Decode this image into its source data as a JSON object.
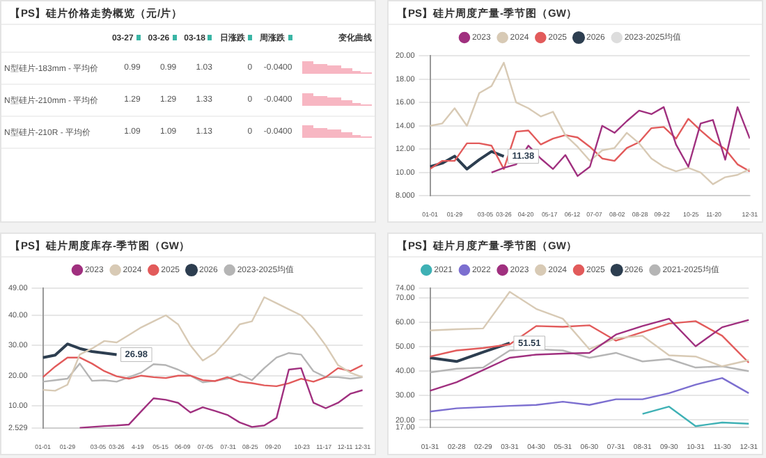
{
  "chart_data": [
    {
      "type": "other",
      "title": "【PS】硅片价格走势概览（元/片）",
      "annotations": [
        "03-27",
        "03-26",
        "03-18",
        "日涨跌",
        "周涨跌",
        "变化曲线",
        "N型硅片-183mm - 平均价",
        "0.99",
        "0.99",
        "1.03",
        "0",
        "-0.0400",
        "N型硅片-210mm - 平均价",
        "1.29",
        "1.29",
        "1.33",
        "0",
        "-0.0400",
        "N型硅片-210R - 平均价",
        "1.09",
        "1.09",
        "1.13",
        "0",
        "-0.0400"
      ]
    },
    {
      "type": "line",
      "title": "【PS】硅片周度产量-季节图（GW）",
      "legend": "top",
      "grid": "y",
      "x": [
        "--01-01",
        "--01-15",
        "--01-29",
        "--02-12",
        "--02-26",
        "--03-12",
        "--03-26",
        "--04-09",
        "--04-23",
        "--05-07",
        "--05-21",
        "--06-04",
        "--06-18",
        "--07-02",
        "--07-16",
        "--07-30",
        "--08-13",
        "--08-27",
        "--09-10",
        "--09-24",
        "--10-08",
        "--10-22",
        "--11-05",
        "--11-19",
        "--12-03",
        "--12-17",
        "--12-31"
      ],
      "xlim": [
        "--01-01",
        "--12-31"
      ],
      "xticks": [
        {
          "value": "--01-01",
          "label": "01-01"
        },
        {
          "value": "--01-29",
          "label": "01-29"
        },
        {
          "value": "--03-05",
          "label": "03-05"
        },
        {
          "value": "--03-26",
          "label": "03-26"
        },
        {
          "value": "--04-20",
          "label": "04-20"
        },
        {
          "value": "--05-17",
          "label": "05-17"
        },
        {
          "value": "--06-12",
          "label": "06-12"
        },
        {
          "value": "--07-07",
          "label": "07-07"
        },
        {
          "value": "--08-02",
          "label": "08-02"
        },
        {
          "value": "--08-28",
          "label": "08-28"
        },
        {
          "value": "--09-22",
          "label": "09-22"
        },
        {
          "value": "--10-25",
          "label": "10-25"
        },
        {
          "value": "--11-20",
          "label": "11-20"
        },
        {
          "value": "--12-31",
          "label": "12-31"
        }
      ],
      "ylim": [
        8,
        20
      ],
      "yticks": [
        {
          "value": 8,
          "label": "8.000"
        },
        {
          "value": 10,
          "label": "10.00"
        },
        {
          "value": 12,
          "label": "12.00"
        },
        {
          "value": 14,
          "label": "14.00"
        },
        {
          "value": 16,
          "label": "16.00"
        },
        {
          "value": 18,
          "label": "18.00"
        },
        {
          "value": 20,
          "label": "20.00"
        }
      ],
      "annotations": [
        {
          "text": "11.38",
          "x": "--03-26",
          "y": 11.38
        }
      ],
      "series": [
        {
          "name": "2023",
          "color": "#a0307f",
          "values": [
            null,
            null,
            null,
            null,
            null,
            10.0,
            10.4,
            10.7,
            12.3,
            11.2,
            10.3,
            11.5,
            9.7,
            10.5,
            14.0,
            13.4,
            14.4,
            15.3,
            15.0,
            15.6,
            12.4,
            10.5,
            14.2,
            14.5,
            11.1,
            15.6,
            12.9
          ]
        },
        {
          "name": "2024",
          "color": "#d8cab5",
          "values": [
            14.0,
            14.2,
            15.5,
            14.0,
            16.8,
            17.4,
            19.4,
            16.0,
            15.5,
            14.8,
            15.2,
            13.2,
            12.2,
            11.0,
            11.9,
            12.1,
            13.4,
            12.5,
            11.2,
            10.5,
            10.1,
            10.4,
            10.0,
            9.0,
            9.6,
            9.8,
            10.3
          ]
        },
        {
          "name": "2025",
          "color": "#e25b5b",
          "values": [
            10.3,
            11.0,
            11.0,
            12.5,
            12.5,
            12.3,
            10.3,
            13.5,
            13.6,
            12.4,
            12.9,
            13.2,
            13.0,
            12.2,
            11.2,
            11.0,
            12.1,
            12.6,
            13.8,
            13.9,
            12.9,
            14.6,
            13.6,
            12.7,
            12.0,
            10.7,
            10.1
          ]
        },
        {
          "name": "2026",
          "color": "#2d3e50",
          "values": [
            10.5,
            10.8,
            11.4,
            10.3,
            11.1,
            11.8,
            11.38,
            null,
            null,
            null,
            null,
            null,
            null,
            null,
            null,
            null,
            null,
            null,
            null,
            null,
            null,
            null,
            null,
            null,
            null,
            null,
            null
          ]
        },
        {
          "name": "2023-2025均值",
          "color": "#dddddd",
          "values": [
            null,
            null,
            null,
            null,
            null,
            null,
            null,
            null,
            null,
            null,
            null,
            null,
            null,
            null,
            null,
            null,
            null,
            null,
            null,
            null,
            null,
            null,
            null,
            null,
            null,
            null,
            null
          ]
        }
      ]
    },
    {
      "type": "line",
      "title": "【PS】硅片周度库存-季节图（GW）",
      "legend": "top",
      "grid": "y",
      "x": [
        "--01-01",
        "--01-15",
        "--01-29",
        "--02-12",
        "--02-26",
        "--03-12",
        "--03-26",
        "--04-09",
        "--04-23",
        "--05-07",
        "--05-21",
        "--06-04",
        "--06-18",
        "--07-02",
        "--07-16",
        "--07-30",
        "--08-13",
        "--08-27",
        "--09-10",
        "--09-24",
        "--10-08",
        "--10-22",
        "--11-05",
        "--11-19",
        "--12-03",
        "--12-17",
        "--12-31"
      ],
      "xlim": [
        "--01-01",
        "--12-31"
      ],
      "xticks": [
        {
          "value": "--01-01",
          "label": "01-01"
        },
        {
          "value": "--01-29",
          "label": "01-29"
        },
        {
          "value": "--03-05",
          "label": "03-05"
        },
        {
          "value": "--03-26",
          "label": "03-26"
        },
        {
          "value": "--04-19",
          "label": "4-19"
        },
        {
          "value": "--05-15",
          "label": "05-15"
        },
        {
          "value": "--06-09",
          "label": "06-09"
        },
        {
          "value": "--07-05",
          "label": "07-05"
        },
        {
          "value": "--07-31",
          "label": "07-31"
        },
        {
          "value": "--08-25",
          "label": "08-25"
        },
        {
          "value": "--09-20",
          "label": "09-20"
        },
        {
          "value": "--10-23",
          "label": "10-23"
        },
        {
          "value": "--11-17",
          "label": "11-17"
        },
        {
          "value": "--12-11",
          "label": "12-11"
        },
        {
          "value": "--12-31",
          "label": "12-31"
        }
      ],
      "ylim": [
        2.529,
        49
      ],
      "yticks": [
        {
          "value": 2.529,
          "label": "2.529"
        },
        {
          "value": 10,
          "label": "10.00"
        },
        {
          "value": 20,
          "label": "20.00"
        },
        {
          "value": 30,
          "label": "30.00"
        },
        {
          "value": 40,
          "label": "40.00"
        },
        {
          "value": 49,
          "label": "49.00"
        }
      ],
      "annotations": [
        {
          "text": "26.98",
          "x": "--03-26",
          "y": 26.98
        }
      ],
      "series": [
        {
          "name": "2023",
          "color": "#a0307f",
          "values": [
            null,
            null,
            null,
            2.7,
            3.0,
            3.3,
            3.5,
            3.8,
            8.2,
            12.5,
            12,
            11,
            7.8,
            9.5,
            8.3,
            7,
            4.5,
            3.0,
            3.5,
            6,
            22,
            22.5,
            11,
            9.2,
            11,
            14,
            15.2
          ]
        },
        {
          "name": "2024",
          "color": "#d8cab5",
          "values": [
            15.3,
            15.0,
            17,
            27,
            29,
            31.5,
            31,
            33.5,
            36,
            38,
            40,
            37,
            30,
            25,
            27.5,
            32,
            37,
            38,
            46,
            44,
            42,
            40,
            35.5,
            30,
            23.5,
            21,
            19.5
          ]
        },
        {
          "name": "2025",
          "color": "#e25b5b",
          "values": [
            19.5,
            23,
            26,
            26,
            24,
            21.5,
            19.8,
            19,
            20,
            19.5,
            19.2,
            20,
            20,
            18.5,
            18.2,
            19.5,
            18,
            17.5,
            16.8,
            16.5,
            17.5,
            19,
            18,
            19.5,
            22.5,
            21.5,
            23.5
          ]
        },
        {
          "name": "2026",
          "color": "#2d3e50",
          "values": [
            26,
            26.8,
            30.5,
            29,
            28,
            27.5,
            26.98,
            null,
            null,
            null,
            null,
            null,
            null,
            null,
            null,
            null,
            null,
            null,
            null,
            null,
            null,
            null,
            null,
            null,
            null,
            null,
            null
          ]
        },
        {
          "name": "2023-2025均值",
          "color": "#b5b5b5",
          "values": [
            18,
            18.5,
            19,
            24,
            18.3,
            18.5,
            18,
            19.5,
            21,
            23.8,
            23.5,
            22,
            20,
            17.8,
            18.3,
            19,
            20.5,
            18.5,
            22.5,
            26,
            27.5,
            27,
            21.5,
            19.5,
            19.5,
            19,
            19.5
          ]
        }
      ]
    },
    {
      "type": "line",
      "title": "【PS】硅片月度产量-季节图（GW）",
      "legend": "top",
      "grid": "y",
      "categories": [
        "01-31",
        "02-28",
        "02-29",
        "03-31",
        "04-30",
        "05-31",
        "06-30",
        "07-31",
        "08-31",
        "09-30",
        "10-31",
        "11-30",
        "12-31"
      ],
      "ylim": [
        17,
        74
      ],
      "yticks": [
        {
          "value": 17,
          "label": "17.00"
        },
        {
          "value": 20,
          "label": "20.00"
        },
        {
          "value": 30,
          "label": "30.00"
        },
        {
          "value": 40,
          "label": "40.00"
        },
        {
          "value": 50,
          "label": "50.00"
        },
        {
          "value": 60,
          "label": "60.00"
        },
        {
          "value": 70,
          "label": "70.00"
        },
        {
          "value": 74,
          "label": "74.00"
        }
      ],
      "annotations": [
        {
          "text": "51.51",
          "x": "03-31",
          "y": 51.51
        }
      ],
      "series": [
        {
          "name": "2021",
          "color": "#3fb1b5",
          "values": [
            null,
            null,
            null,
            null,
            null,
            null,
            null,
            null,
            22.5,
            25.5,
            17.5,
            19,
            18.5
          ]
        },
        {
          "name": "2022",
          "color": "#7c6fd0",
          "values": [
            23.5,
            24.8,
            25.3,
            25.8,
            26.2,
            27.5,
            26.2,
            28.5,
            28.5,
            31,
            34.5,
            37.2,
            31
          ]
        },
        {
          "name": "2023",
          "color": "#a0307f",
          "values": [
            32,
            35.5,
            40.5,
            45.5,
            46.8,
            47.2,
            47.5,
            55,
            58.5,
            61.5,
            50.2,
            58,
            61
          ]
        },
        {
          "name": "2024",
          "color": "#d8cab5",
          "values": [
            56.7,
            57.2,
            57.5,
            72.5,
            65.5,
            61.5,
            49,
            53.5,
            54.5,
            46.5,
            46,
            42,
            44.5
          ]
        },
        {
          "name": "2025",
          "color": "#e25b5b",
          "values": [
            46,
            48.5,
            49.5,
            51,
            58.5,
            58.2,
            58.8,
            52.5,
            56,
            59.5,
            60.5,
            54.5,
            43.5
          ]
        },
        {
          "name": "2026",
          "color": "#2d3e50",
          "values": [
            45.5,
            44,
            47.8,
            51.51,
            null,
            null,
            null,
            null,
            null,
            null,
            null,
            null,
            null
          ]
        },
        {
          "name": "2021-2025均值",
          "color": "#b5b5b5",
          "values": [
            39.5,
            41,
            41.5,
            48.5,
            49,
            48.5,
            45.5,
            47.5,
            44,
            45,
            41.5,
            42,
            40
          ]
        }
      ]
    }
  ]
}
